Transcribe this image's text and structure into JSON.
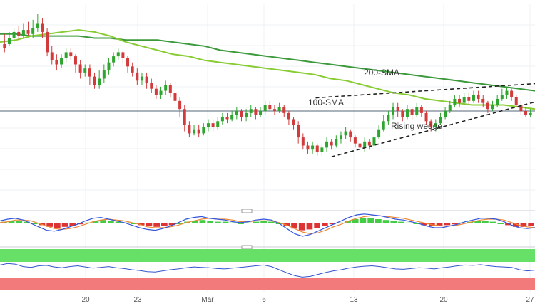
{
  "chart_data": {
    "type": "candlestick",
    "x_tick_labels": [
      "20",
      "23",
      "Mar",
      "6",
      "13",
      "20",
      "27"
    ],
    "horizontal_reference_level": 0.47,
    "price_ylim": [
      0,
      1
    ],
    "candles": [
      [
        0.8,
        0.78,
        0.85,
        0.76
      ],
      [
        0.8,
        0.83,
        0.86,
        0.79
      ],
      [
        0.83,
        0.86,
        0.88,
        0.81
      ],
      [
        0.86,
        0.84,
        0.89,
        0.82
      ],
      [
        0.84,
        0.87,
        0.9,
        0.83
      ],
      [
        0.87,
        0.85,
        0.91,
        0.84
      ],
      [
        0.85,
        0.88,
        0.92,
        0.83
      ],
      [
        0.88,
        0.9,
        0.95,
        0.86
      ],
      [
        0.9,
        0.86,
        0.93,
        0.83
      ],
      [
        0.86,
        0.76,
        0.88,
        0.74
      ],
      [
        0.76,
        0.72,
        0.79,
        0.7
      ],
      [
        0.72,
        0.7,
        0.75,
        0.67
      ],
      [
        0.7,
        0.73,
        0.75,
        0.68
      ],
      [
        0.73,
        0.76,
        0.78,
        0.71
      ],
      [
        0.76,
        0.74,
        0.78,
        0.72
      ],
      [
        0.74,
        0.7,
        0.75,
        0.66
      ],
      [
        0.7,
        0.66,
        0.72,
        0.63
      ],
      [
        0.66,
        0.68,
        0.7,
        0.64
      ],
      [
        0.68,
        0.64,
        0.7,
        0.6
      ],
      [
        0.64,
        0.6,
        0.66,
        0.58
      ],
      [
        0.6,
        0.63,
        0.67,
        0.58
      ],
      [
        0.63,
        0.67,
        0.7,
        0.61
      ],
      [
        0.67,
        0.71,
        0.73,
        0.65
      ],
      [
        0.71,
        0.74,
        0.76,
        0.69
      ],
      [
        0.74,
        0.76,
        0.78,
        0.72
      ],
      [
        0.76,
        0.73,
        0.77,
        0.7
      ],
      [
        0.73,
        0.69,
        0.74,
        0.66
      ],
      [
        0.69,
        0.66,
        0.71,
        0.64
      ],
      [
        0.66,
        0.62,
        0.68,
        0.6
      ],
      [
        0.62,
        0.64,
        0.66,
        0.6
      ],
      [
        0.64,
        0.61,
        0.66,
        0.58
      ],
      [
        0.61,
        0.58,
        0.63,
        0.56
      ],
      [
        0.58,
        0.55,
        0.6,
        0.53
      ],
      [
        0.55,
        0.57,
        0.59,
        0.53
      ],
      [
        0.57,
        0.6,
        0.62,
        0.55
      ],
      [
        0.6,
        0.56,
        0.61,
        0.54
      ],
      [
        0.56,
        0.52,
        0.58,
        0.5
      ],
      [
        0.52,
        0.48,
        0.54,
        0.44
      ],
      [
        0.48,
        0.4,
        0.5,
        0.37
      ],
      [
        0.4,
        0.36,
        0.42,
        0.34
      ],
      [
        0.36,
        0.38,
        0.4,
        0.35
      ],
      [
        0.38,
        0.36,
        0.4,
        0.34
      ],
      [
        0.36,
        0.39,
        0.41,
        0.35
      ],
      [
        0.39,
        0.41,
        0.43,
        0.37
      ],
      [
        0.41,
        0.39,
        0.43,
        0.37
      ],
      [
        0.39,
        0.42,
        0.44,
        0.38
      ],
      [
        0.42,
        0.44,
        0.46,
        0.4
      ],
      [
        0.44,
        0.43,
        0.46,
        0.41
      ],
      [
        0.43,
        0.45,
        0.47,
        0.42
      ],
      [
        0.45,
        0.47,
        0.49,
        0.43
      ],
      [
        0.47,
        0.44,
        0.48,
        0.42
      ],
      [
        0.44,
        0.46,
        0.48,
        0.42
      ],
      [
        0.46,
        0.48,
        0.5,
        0.44
      ],
      [
        0.48,
        0.45,
        0.49,
        0.43
      ],
      [
        0.45,
        0.47,
        0.49,
        0.44
      ],
      [
        0.47,
        0.5,
        0.52,
        0.45
      ],
      [
        0.5,
        0.48,
        0.52,
        0.47
      ],
      [
        0.48,
        0.47,
        0.5,
        0.45
      ],
      [
        0.47,
        0.49,
        0.51,
        0.46
      ],
      [
        0.49,
        0.46,
        0.5,
        0.44
      ],
      [
        0.46,
        0.43,
        0.47,
        0.4
      ],
      [
        0.43,
        0.4,
        0.44,
        0.38
      ],
      [
        0.4,
        0.34,
        0.42,
        0.31
      ],
      [
        0.34,
        0.3,
        0.36,
        0.28
      ],
      [
        0.3,
        0.28,
        0.32,
        0.26
      ],
      [
        0.28,
        0.3,
        0.32,
        0.26
      ],
      [
        0.3,
        0.27,
        0.31,
        0.25
      ],
      [
        0.27,
        0.29,
        0.31,
        0.25
      ],
      [
        0.29,
        0.32,
        0.34,
        0.27
      ],
      [
        0.32,
        0.3,
        0.33,
        0.28
      ],
      [
        0.3,
        0.33,
        0.35,
        0.29
      ],
      [
        0.33,
        0.35,
        0.37,
        0.31
      ],
      [
        0.35,
        0.37,
        0.39,
        0.33
      ],
      [
        0.37,
        0.34,
        0.38,
        0.32
      ],
      [
        0.34,
        0.31,
        0.35,
        0.29
      ],
      [
        0.31,
        0.29,
        0.32,
        0.27
      ],
      [
        0.29,
        0.32,
        0.34,
        0.27
      ],
      [
        0.32,
        0.3,
        0.33,
        0.28
      ],
      [
        0.3,
        0.34,
        0.36,
        0.29
      ],
      [
        0.34,
        0.38,
        0.4,
        0.33
      ],
      [
        0.38,
        0.42,
        0.45,
        0.37
      ],
      [
        0.42,
        0.45,
        0.47,
        0.4
      ],
      [
        0.45,
        0.49,
        0.51,
        0.43
      ],
      [
        0.49,
        0.47,
        0.51,
        0.44
      ],
      [
        0.47,
        0.44,
        0.48,
        0.42
      ],
      [
        0.44,
        0.48,
        0.5,
        0.43
      ],
      [
        0.48,
        0.45,
        0.49,
        0.43
      ],
      [
        0.45,
        0.49,
        0.51,
        0.44
      ],
      [
        0.49,
        0.46,
        0.5,
        0.44
      ],
      [
        0.46,
        0.42,
        0.47,
        0.4
      ],
      [
        0.42,
        0.39,
        0.43,
        0.37
      ],
      [
        0.39,
        0.41,
        0.43,
        0.37
      ],
      [
        0.41,
        0.44,
        0.46,
        0.4
      ],
      [
        0.44,
        0.47,
        0.49,
        0.43
      ],
      [
        0.47,
        0.5,
        0.52,
        0.46
      ],
      [
        0.5,
        0.53,
        0.55,
        0.49
      ],
      [
        0.53,
        0.51,
        0.55,
        0.49
      ],
      [
        0.51,
        0.54,
        0.56,
        0.5
      ],
      [
        0.54,
        0.52,
        0.56,
        0.5
      ],
      [
        0.52,
        0.55,
        0.57,
        0.51
      ],
      [
        0.55,
        0.53,
        0.57,
        0.51
      ],
      [
        0.53,
        0.51,
        0.55,
        0.49
      ],
      [
        0.51,
        0.48,
        0.52,
        0.46
      ],
      [
        0.48,
        0.5,
        0.52,
        0.47
      ],
      [
        0.5,
        0.53,
        0.55,
        0.49
      ],
      [
        0.53,
        0.55,
        0.58,
        0.52
      ],
      [
        0.55,
        0.57,
        0.59,
        0.53
      ],
      [
        0.57,
        0.54,
        0.58,
        0.52
      ],
      [
        0.54,
        0.5,
        0.55,
        0.49
      ],
      [
        0.5,
        0.47,
        0.52,
        0.45
      ],
      [
        0.47,
        0.45,
        0.49,
        0.44
      ],
      [
        0.45,
        0.46,
        0.48,
        0.44
      ]
    ],
    "sma_200": [
      0.85,
      0.85,
      0.84,
      0.84,
      0.84,
      0.84,
      0.83,
      0.83,
      0.82,
      0.82,
      0.82,
      0.81,
      0.8,
      0.79,
      0.77,
      0.76,
      0.75,
      0.74,
      0.73,
      0.72,
      0.71,
      0.7,
      0.69,
      0.68,
      0.67,
      0.66,
      0.65,
      0.64,
      0.63,
      0.62,
      0.61,
      0.6,
      0.59,
      0.58,
      0.57
    ],
    "sma_100": [
      0.81,
      0.82,
      0.84,
      0.85,
      0.86,
      0.87,
      0.86,
      0.84,
      0.81,
      0.79,
      0.77,
      0.75,
      0.74,
      0.72,
      0.71,
      0.7,
      0.69,
      0.68,
      0.67,
      0.66,
      0.65,
      0.63,
      0.62,
      0.6,
      0.58,
      0.56,
      0.55,
      0.53,
      0.52,
      0.51,
      0.5,
      0.5,
      0.5,
      0.49,
      0.48
    ],
    "wedge_upper": [
      [
        0.59,
        0.535
      ],
      [
        1.0,
        0.605
      ]
    ],
    "wedge_lower": [
      [
        0.62,
        0.245
      ],
      [
        1.0,
        0.515
      ]
    ],
    "annotations": [
      "200-SMA",
      "100-SMA",
      "Rising wedge"
    ],
    "macd": {
      "hist": [
        0.2,
        0.3,
        0.3,
        0.2,
        0.0,
        -0.2,
        -0.4,
        -0.5,
        -0.4,
        -0.3,
        -0.1,
        0.1,
        0.3,
        0.4,
        0.3,
        0.2,
        0.1,
        0.0,
        -0.2,
        -0.3,
        -0.4,
        -0.3,
        -0.2,
        0.0,
        0.2,
        0.3,
        0.4,
        0.3,
        0.2,
        0.2,
        0.1,
        0.0,
        0.1,
        0.2,
        0.3,
        0.2,
        0.0,
        -0.3,
        -0.6,
        -0.8,
        -0.7,
        -0.5,
        -0.3,
        -0.1,
        0.1,
        0.3,
        0.5,
        0.6,
        0.6,
        0.5,
        0.4,
        0.3,
        0.2,
        0.1,
        0.0,
        -0.2,
        -0.3,
        -0.3,
        -0.2,
        -0.1,
        0.1,
        0.2,
        0.3,
        0.3,
        0.2,
        0.0,
        -0.2,
        -0.4,
        -0.4,
        -0.3
      ],
      "macd_line": [
        0.3,
        0.5,
        0.6,
        0.4,
        0.0,
        -0.4,
        -0.8,
        -0.9,
        -0.7,
        -0.4,
        -0.1,
        0.3,
        0.6,
        0.7,
        0.5,
        0.3,
        0.1,
        -0.2,
        -0.5,
        -0.7,
        -0.8,
        -0.6,
        -0.3,
        0.1,
        0.5,
        0.7,
        0.8,
        0.6,
        0.5,
        0.4,
        0.2,
        0.1,
        0.2,
        0.4,
        0.5,
        0.4,
        0.0,
        -0.6,
        -1.2,
        -1.5,
        -1.3,
        -0.9,
        -0.5,
        -0.1,
        0.3,
        0.7,
        1.0,
        1.1,
        1.0,
        0.9,
        0.7,
        0.5,
        0.4,
        0.2,
        0.0,
        -0.3,
        -0.5,
        -0.5,
        -0.3,
        -0.1,
        0.2,
        0.4,
        0.6,
        0.6,
        0.5,
        0.2,
        -0.2,
        -0.5,
        -0.6,
        -0.5
      ],
      "signal_line": [
        0.1,
        0.2,
        0.4,
        0.4,
        0.3,
        0.0,
        -0.3,
        -0.6,
        -0.7,
        -0.6,
        -0.4,
        -0.1,
        0.2,
        0.4,
        0.5,
        0.4,
        0.3,
        0.1,
        -0.1,
        -0.4,
        -0.5,
        -0.5,
        -0.4,
        -0.2,
        0.1,
        0.3,
        0.5,
        0.6,
        0.5,
        0.5,
        0.4,
        0.2,
        0.2,
        0.3,
        0.3,
        0.3,
        0.1,
        -0.2,
        -0.6,
        -1.0,
        -1.2,
        -1.1,
        -0.8,
        -0.4,
        -0.1,
        0.3,
        0.6,
        0.8,
        0.9,
        0.9,
        0.8,
        0.7,
        0.6,
        0.4,
        0.2,
        0.0,
        -0.2,
        -0.3,
        -0.3,
        -0.2,
        0.0,
        0.2,
        0.4,
        0.5,
        0.5,
        0.4,
        0.1,
        -0.2,
        -0.4,
        -0.5
      ]
    },
    "rsi": [
      62,
      66,
      64,
      58,
      56,
      60,
      61,
      57,
      55,
      58,
      60,
      57,
      54,
      56,
      58,
      55,
      53,
      50,
      48,
      45,
      44,
      47,
      50,
      52,
      55,
      57,
      56,
      55,
      53,
      52,
      54,
      56,
      58,
      60,
      62,
      58,
      50,
      42,
      35,
      31,
      33,
      38,
      43,
      47,
      50,
      54,
      57,
      59,
      60,
      58,
      55,
      52,
      51,
      53,
      55,
      54,
      52,
      55,
      57,
      60,
      62,
      61,
      63,
      60,
      58,
      57,
      56,
      50,
      47,
      49
    ],
    "colors": {
      "bull": "#2ea52e",
      "bear": "#d13b3b",
      "sma200": "#3c9a3c",
      "sma100": "#88cc33",
      "macd_line": "#3355dd",
      "signal_line": "#ee8833",
      "hist_up": "#44cc44",
      "hist_down": "#dd3333",
      "rsi_line": "#3355cc",
      "overbought_band": "#66e066",
      "oversold_band": "#f27a7a",
      "reference_line": "#556677"
    }
  }
}
